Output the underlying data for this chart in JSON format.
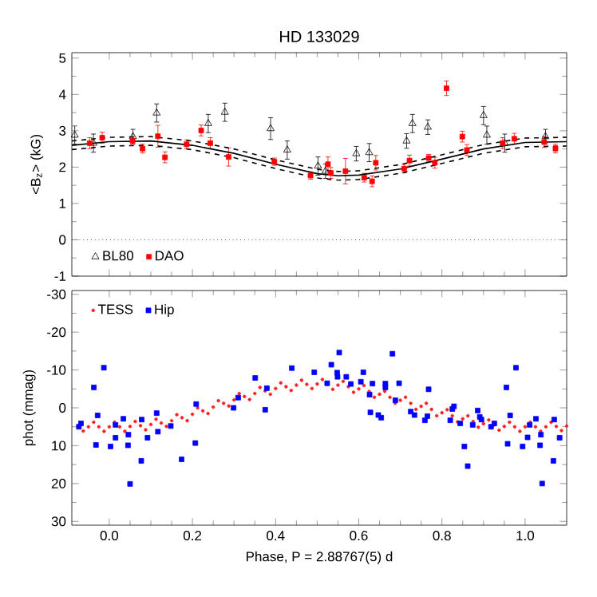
{
  "chart_data": [
    {
      "type": "scatter",
      "title": "HD 133029",
      "ylabel": "<B$_{z}$> (kG)",
      "xlim": [
        -0.09,
        1.1
      ],
      "ylim": [
        -1,
        5.15
      ],
      "xticks": [
        0,
        0.2,
        0.4,
        0.6,
        0.8,
        1
      ],
      "yticks": [
        -1,
        0,
        1,
        2,
        3,
        4,
        5
      ],
      "tick_labels": "y",
      "legend": "bottom left",
      "grid": false,
      "ref_lines": [
        {
          "axis": "y",
          "value": 0,
          "line_style": "dotted",
          "color": "#000000"
        }
      ],
      "series": [
        {
          "name": "BL80",
          "color": "#000000",
          "marker": "triangle",
          "x": [
            -0.083,
            -0.038,
            0.057,
            0.114,
            0.238,
            0.278,
            0.388,
            0.428,
            0.502,
            0.52,
            0.594,
            0.625,
            0.715,
            0.729,
            0.766,
            0.9,
            0.908,
            0.951,
            1.049
          ],
          "values": [
            2.88,
            2.66,
            2.84,
            3.49,
            3.2,
            3.51,
            3.06,
            2.47,
            2.03,
            1.89,
            2.37,
            2.4,
            2.72,
            3.2,
            3.1,
            3.42,
            2.88,
            2.66,
            2.84
          ],
          "errors": [
            0.25,
            0.25,
            0.2,
            0.25,
            0.25,
            0.25,
            0.3,
            0.25,
            0.25,
            0.2,
            0.2,
            0.25,
            0.2,
            0.25,
            0.2,
            0.25,
            0.25,
            0.25,
            0.2
          ]
        },
        {
          "name": "DAO",
          "color": "#ff0000",
          "marker": "square",
          "x": [
            -0.047,
            -0.017,
            0.056,
            0.08,
            0.117,
            0.134,
            0.186,
            0.221,
            0.243,
            0.287,
            0.397,
            0.484,
            0.526,
            0.533,
            0.568,
            0.613,
            0.632,
            0.641,
            0.709,
            0.722,
            0.768,
            0.783,
            0.811,
            0.849,
            0.86,
            0.946,
            0.974,
            1.046,
            1.073
          ],
          "values": [
            2.66,
            2.81,
            2.73,
            2.51,
            2.85,
            2.27,
            2.63,
            3.01,
            2.66,
            2.28,
            2.15,
            1.77,
            2.08,
            1.84,
            1.89,
            1.71,
            1.61,
            2.12,
            1.96,
            2.18,
            2.25,
            2.12,
            4.17,
            2.84,
            2.47,
            2.66,
            2.78,
            2.69,
            2.51
          ],
          "errors": [
            0.15,
            0.15,
            0.1,
            0.12,
            0.3,
            0.15,
            0.12,
            0.15,
            0.15,
            0.25,
            0.1,
            0.1,
            0.2,
            0.15,
            0.35,
            0.12,
            0.15,
            0.2,
            0.12,
            0.15,
            0.1,
            0.15,
            0.2,
            0.15,
            0.15,
            0.15,
            0.15,
            0.15,
            0.12
          ]
        },
        {
          "type": "line",
          "color": "#000000",
          "marker": "none",
          "line_style": "solid",
          "x": [
            -0.09,
            0,
            0.1,
            0.2,
            0.3,
            0.4,
            0.5,
            0.55,
            0.6,
            0.7,
            0.8,
            0.9,
            1,
            1.1
          ],
          "values": [
            2.6,
            2.7,
            2.72,
            2.6,
            2.38,
            2.08,
            1.82,
            1.76,
            1.78,
            1.95,
            2.22,
            2.5,
            2.68,
            2.7
          ]
        },
        {
          "type": "line",
          "color": "#000000",
          "marker": "none",
          "line_style": "dashed",
          "x": [
            -0.09,
            0,
            0.1,
            0.2,
            0.3,
            0.4,
            0.5,
            0.55,
            0.6,
            0.7,
            0.8,
            0.9,
            1,
            1.1
          ],
          "values": [
            2.72,
            2.82,
            2.84,
            2.72,
            2.5,
            2.2,
            1.94,
            1.88,
            1.9,
            2.07,
            2.34,
            2.62,
            2.8,
            2.82
          ]
        },
        {
          "type": "line",
          "color": "#000000",
          "marker": "none",
          "line_style": "dashed",
          "x": [
            -0.09,
            0,
            0.1,
            0.2,
            0.3,
            0.4,
            0.5,
            0.55,
            0.6,
            0.7,
            0.8,
            0.9,
            1,
            1.1
          ],
          "values": [
            2.48,
            2.58,
            2.6,
            2.48,
            2.26,
            1.96,
            1.7,
            1.64,
            1.66,
            1.83,
            2.1,
            2.38,
            2.56,
            2.58
          ]
        }
      ]
    },
    {
      "type": "scatter",
      "xlabel": "Phase, P = 2.88767(5) d",
      "ylabel": "phot (mmag)",
      "xlim": [
        -0.09,
        1.1
      ],
      "ylim": [
        31,
        -31
      ],
      "xticks": [
        {
          "value": 0,
          "label": "0.0"
        },
        {
          "value": 0.2,
          "label": "0.2"
        },
        {
          "value": 0.4,
          "label": "0.4"
        },
        {
          "value": 0.6,
          "label": "0.6"
        },
        {
          "value": 0.8,
          "label": "0.8"
        },
        {
          "value": 1,
          "label": "1.0"
        }
      ],
      "yticks": [
        -30,
        -20,
        -10,
        0,
        10,
        20,
        30
      ],
      "legend": "top left",
      "grid": false,
      "series": [
        {
          "name": "TESS",
          "color": "#ff2020",
          "marker": "circle",
          "x": [
            -0.075,
            -0.05,
            -0.025,
            0,
            0.025,
            0.05,
            0.075,
            0.1,
            0.125,
            0.15,
            0.175,
            0.2,
            0.225,
            0.25,
            0.275,
            0.3,
            0.325,
            0.35,
            0.375,
            0.4,
            0.425,
            0.45,
            0.475,
            0.5,
            0.525,
            0.55,
            0.575,
            0.6,
            0.625,
            0.65,
            0.675,
            0.7,
            0.725,
            0.75,
            0.775,
            0.8,
            0.825,
            0.85,
            0.875,
            0.9,
            0.925,
            0.95,
            0.975,
            1,
            1.025,
            1.05,
            1.075,
            1.1,
            -0.0625,
            -0.0375,
            -0.0125,
            0.0125,
            0.0375,
            0.0625,
            0.0875,
            0.1125,
            0.1375,
            0.1625,
            0.1875,
            0.2125,
            0.2375,
            0.2625,
            0.2875,
            0.3125,
            0.3375,
            0.3625,
            0.3875,
            0.4125,
            0.4375,
            0.4625,
            0.4875,
            0.5125,
            0.5375,
            0.5625,
            0.5875,
            0.6125,
            0.6375,
            0.6625,
            0.6875,
            0.7125,
            0.7375,
            0.7625,
            0.7875,
            0.8125,
            0.8375,
            0.8625,
            0.8875,
            0.9125,
            0.9375,
            0.9625,
            0.9875,
            1.0125,
            1.0375,
            1.0625,
            1.0875
          ],
          "values": [
            4.8,
            5.0,
            5.0,
            5.0,
            5.0,
            4.9,
            4.7,
            4.4,
            4.0,
            3.4,
            2.6,
            1.7,
            0.8,
            -0.2,
            -1.2,
            -2.1,
            -3.0,
            -3.8,
            -4.5,
            -5.1,
            -5.6,
            -6.0,
            -6.2,
            -6.3,
            -6.2,
            -6.0,
            -5.6,
            -5.0,
            -4.3,
            -3.6,
            -2.8,
            -2.0,
            -1.2,
            -0.4,
            0.4,
            1.3,
            2.1,
            2.9,
            3.6,
            4.2,
            4.6,
            4.9,
            5.0,
            5.0,
            5.0,
            5.0,
            4.9,
            4.8,
            6.1,
            3.8,
            6.2,
            3.8,
            6.2,
            3.6,
            5.8,
            3.0,
            4.9,
            1.8,
            3.4,
            0.0,
            1.5,
            -1.9,
            -0.5,
            -3.8,
            -2.2,
            -5.4,
            -3.6,
            -6.6,
            -4.6,
            -7.3,
            -5.1,
            -7.5,
            -4.9,
            -7.0,
            -4.1,
            -5.9,
            -2.8,
            -4.4,
            -1.2,
            -2.8,
            0.4,
            -1.2,
            2.1,
            0.5,
            3.7,
            2.1,
            5.1,
            3.2,
            5.9,
            3.8,
            6.2,
            3.8,
            6.2,
            3.8,
            6.0
          ]
        },
        {
          "name": "Hip",
          "color": "#0000ff",
          "marker": "square",
          "x": [
            -0.073,
            -0.068,
            -0.037,
            -0.032,
            -0.028,
            -0.013,
            0.003,
            0.015,
            0.015,
            0.034,
            0.045,
            0.046,
            0.05,
            0.077,
            0.078,
            0.092,
            0.114,
            0.117,
            0.148,
            0.174,
            0.207,
            0.209,
            0.299,
            0.31,
            0.351,
            0.375,
            0.379,
            0.439,
            0.493,
            0.524,
            0.534,
            0.548,
            0.549,
            0.553,
            0.57,
            0.581,
            0.605,
            0.611,
            0.626,
            0.628,
            0.633,
            0.647,
            0.654,
            0.664,
            0.664,
            0.681,
            0.688,
            0.697,
            0.725,
            0.734,
            0.759,
            0.765,
            0.768,
            0.82,
            0.825,
            0.829,
            0.844,
            0.854,
            0.862,
            0.874,
            0.886,
            0.891,
            0.895,
            0.918,
            0.926,
            0.955,
            0.958,
            0.964,
            0.978,
            0.994,
            1.006,
            1.011,
            1.026,
            1.036,
            1.038,
            1.041,
            1.068,
            1.07,
            1.083
          ],
          "values": [
            5.0,
            4.1,
            -5.4,
            9.8,
            2.0,
            -10.6,
            10.2,
            4.5,
            7.9,
            2.9,
            9.9,
            7.1,
            20.1,
            14.0,
            3.1,
            7.9,
            1.4,
            6.3,
            4.8,
            13.6,
            9.3,
            -1.0,
            0.0,
            -2.7,
            -7.9,
            0.5,
            -5.2,
            -10.5,
            -9.4,
            -6.5,
            -11.4,
            -9.3,
            -8.2,
            -14.6,
            -8.2,
            -6.3,
            -6.9,
            -9.4,
            -3.5,
            1.2,
            -6.4,
            1.9,
            2.6,
            -6.4,
            -5.4,
            -14.3,
            -2.0,
            -6.5,
            1.0,
            1.9,
            3.3,
            2.2,
            -4.9,
            3.3,
            0.3,
            -0.4,
            4.1,
            10.2,
            15.4,
            4.5,
            0.7,
            2.4,
            3.1,
            5.0,
            4.1,
            -5.4,
            9.5,
            2.0,
            -10.6,
            10.2,
            7.8,
            4.5,
            2.9,
            9.9,
            7.1,
            20.0,
            14.0,
            3.1,
            7.9
          ]
        }
      ]
    }
  ]
}
